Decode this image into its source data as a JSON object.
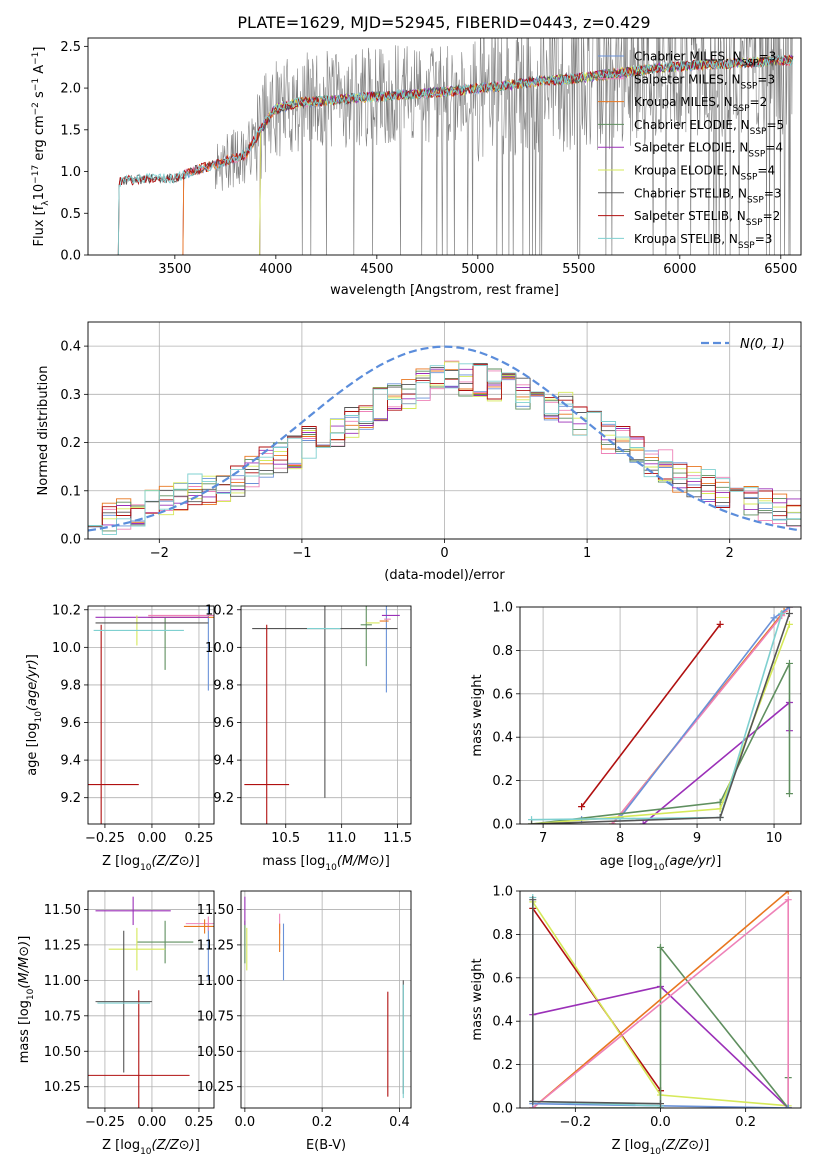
{
  "figure": {
    "title": "PLATE=1629, MJD=52945, FIBERID=0443, z=0.429"
  },
  "colors": {
    "chabrier_miles": "#6a92d8",
    "salpeter_miles": "#ee82b8",
    "kroupa_miles": "#e8761f",
    "chabrier_elodie": "#5f8f5f",
    "salpeter_elodie": "#9b30b8",
    "kroupa_elodie": "#d6e95a",
    "chabrier_stelib": "#555555",
    "salpeter_stelib": "#b01010",
    "kroupa_stelib": "#7fd0d0",
    "observed": "#808080",
    "gaussian": "#5b8ddb"
  },
  "chart_data": [
    {
      "type": "line",
      "id": "spectrum",
      "xlabel": "wavelength [Angstrom, rest frame]",
      "ylabel": "Flux [f_λ 10^-17 erg cm^-2 s^-1 A^-1]",
      "xlim": [
        3070,
        6600
      ],
      "ylim": [
        0,
        2.6
      ],
      "xticks": [
        3500,
        4000,
        4500,
        5000,
        5500,
        6000,
        6500
      ],
      "yticks": [
        0.0,
        0.5,
        1.0,
        1.5,
        2.0,
        2.5
      ],
      "continuum": {
        "wavelength": [
          3220,
          3240,
          3300,
          3400,
          3500,
          3600,
          3700,
          3780,
          3850,
          3950,
          4000,
          4100,
          4300,
          4500,
          4700,
          4900,
          5100,
          5300,
          5500,
          5700,
          5900,
          6100,
          6300,
          6500
        ],
        "flux": [
          0.85,
          0.9,
          0.9,
          0.92,
          0.92,
          1.02,
          1.08,
          1.15,
          1.2,
          1.6,
          1.75,
          1.82,
          1.86,
          1.9,
          1.93,
          1.97,
          2.02,
          2.08,
          2.12,
          2.18,
          2.24,
          2.28,
          2.3,
          2.33
        ]
      },
      "model_start_wavelength": {
        "miles": 3540,
        "elodie": 3920,
        "stelib": 3220
      },
      "legend": {
        "position": "upper right",
        "entries": [
          {
            "key": "chabrier_miles",
            "label": "Chabrier MILES, N",
            "sub": "SSP",
            "suffix": "=3"
          },
          {
            "key": "salpeter_miles",
            "label": "Salpeter MILES, N",
            "sub": "SSP",
            "suffix": "=3"
          },
          {
            "key": "kroupa_miles",
            "label": "Kroupa MILES, N",
            "sub": "SSP",
            "suffix": "=2"
          },
          {
            "key": "chabrier_elodie",
            "label": "Chabrier ELODIE, N",
            "sub": "SSP",
            "suffix": "=5"
          },
          {
            "key": "salpeter_elodie",
            "label": "Salpeter ELODIE, N",
            "sub": "SSP",
            "suffix": "=4"
          },
          {
            "key": "kroupa_elodie",
            "label": "Kroupa ELODIE, N",
            "sub": "SSP",
            "suffix": "=4"
          },
          {
            "key": "chabrier_stelib",
            "label": "Chabrier STELIB, N",
            "sub": "SSP",
            "suffix": "=3"
          },
          {
            "key": "salpeter_stelib",
            "label": "Salpeter STELIB, N",
            "sub": "SSP",
            "suffix": "=2"
          },
          {
            "key": "kroupa_stelib",
            "label": "Kroupa STELIB, N",
            "sub": "SSP",
            "suffix": "=3"
          }
        ]
      }
    },
    {
      "type": "histogram",
      "id": "residuals",
      "xlabel": "(data-model)/error",
      "ylabel": "Normed distribution",
      "xlim": [
        -2.5,
        2.5
      ],
      "ylim": [
        0,
        0.45
      ],
      "xticks": [
        -2,
        -1,
        0,
        1,
        2
      ],
      "yticks": [
        0.0,
        0.1,
        0.2,
        0.3,
        0.4
      ],
      "bins": 50,
      "reference_histogram": [
        0.03,
        0.04,
        0.05,
        0.06,
        0.07,
        0.08,
        0.09,
        0.1,
        0.1,
        0.11,
        0.12,
        0.14,
        0.16,
        0.17,
        0.18,
        0.2,
        0.21,
        0.22,
        0.24,
        0.26,
        0.28,
        0.29,
        0.3,
        0.32,
        0.33,
        0.34,
        0.33,
        0.33,
        0.32,
        0.31,
        0.3,
        0.29,
        0.28,
        0.27,
        0.25,
        0.23,
        0.21,
        0.2,
        0.18,
        0.16,
        0.15,
        0.13,
        0.12,
        0.11,
        0.1,
        0.09,
        0.08,
        0.07,
        0.06,
        0.05
      ],
      "gaussian": {
        "mean": 0,
        "sigma": 1,
        "label": "N(0, 1)"
      },
      "legend": {
        "position": "upper right"
      }
    },
    {
      "type": "errorbar",
      "id": "age_vs_metallicity",
      "xlabel": "Z [log10(Z/Z⊙)]",
      "ylabel": "age  [log10(age/yr)]",
      "xlim": [
        -0.34,
        0.33
      ],
      "ylim": [
        9.06,
        10.22
      ],
      "xticks": [
        -0.25,
        0.0,
        0.25
      ],
      "yticks": [
        9.2,
        9.4,
        9.6,
        9.8,
        10.0,
        10.2
      ],
      "points": [
        {
          "key": "chabrier_miles",
          "x": 0.3,
          "y": 10.1,
          "xerr": 0.0,
          "yerr": 0.33
        },
        {
          "key": "salpeter_miles",
          "x": 0.28,
          "y": 10.17,
          "xerr": 0.3,
          "yerr": 0.0
        },
        {
          "key": "kroupa_miles",
          "x": 0.28,
          "y": 10.16,
          "xerr": 0.3,
          "yerr": 0.0
        },
        {
          "key": "chabrier_elodie",
          "x": 0.07,
          "y": 10.02,
          "xerr": 0.0,
          "yerr": 0.14
        },
        {
          "key": "salpeter_elodie",
          "x": 0.0,
          "y": 10.16,
          "xerr": 0.3,
          "yerr": 0.0
        },
        {
          "key": "kroupa_elodie",
          "x": -0.08,
          "y": 10.09,
          "xerr": 0.0,
          "yerr": 0.08
        },
        {
          "key": "chabrier_stelib",
          "x": 0.0,
          "y": 10.13,
          "xerr": 0.3,
          "yerr": 0.0
        },
        {
          "key": "salpeter_stelib",
          "x": -0.27,
          "y": 9.27,
          "xerr": 0.2,
          "yerr": 0.85
        },
        {
          "key": "kroupa_stelib",
          "x": -0.07,
          "y": 10.09,
          "xerr": 0.24,
          "yerr": 0.0
        }
      ]
    },
    {
      "type": "errorbar",
      "id": "age_vs_mass",
      "xlabel": "mass [log10(M/M⊙)]",
      "ylabel": "",
      "xlim": [
        10.1,
        11.62
      ],
      "ylim": [
        9.06,
        10.22
      ],
      "xticks": [
        10.5,
        11.0,
        11.5
      ],
      "yticks": [
        9.2,
        9.4,
        9.6,
        9.8,
        10.0,
        10.2
      ],
      "points": [
        {
          "key": "chabrier_miles",
          "x": 11.4,
          "y": 10.1,
          "xerr": 0.03,
          "yerr": 0.34
        },
        {
          "key": "salpeter_miles",
          "x": 11.41,
          "y": 10.15,
          "xerr": 0.03,
          "yerr": 0.0
        },
        {
          "key": "kroupa_miles",
          "x": 11.38,
          "y": 10.14,
          "xerr": 0.04,
          "yerr": 0.0
        },
        {
          "key": "chabrier_elodie",
          "x": 11.22,
          "y": 10.12,
          "xerr": 0.05,
          "yerr": 0.22
        },
        {
          "key": "salpeter_elodie",
          "x": 11.44,
          "y": 10.17,
          "xerr": 0.08,
          "yerr": 0.0
        },
        {
          "key": "kroupa_elodie",
          "x": 11.28,
          "y": 10.13,
          "xerr": 0.06,
          "yerr": 0.0
        },
        {
          "key": "chabrier_stelib",
          "x": 10.85,
          "y": 10.1,
          "xerr": 0.65,
          "yerr": 0.9
        },
        {
          "key": "salpeter_stelib",
          "x": 10.33,
          "y": 9.27,
          "xerr": 0.2,
          "yerr": 0.85
        },
        {
          "key": "kroupa_stelib",
          "x": 10.84,
          "y": 10.1,
          "xerr": 0.15,
          "yerr": 0.0
        }
      ]
    },
    {
      "type": "line",
      "id": "cumulative_mass_weight_age",
      "xlabel": "age  [log10(age/yr)]",
      "ylabel": "mass weight",
      "xlim": [
        6.7,
        10.35
      ],
      "ylim": [
        0,
        1
      ],
      "xticks": [
        7,
        8,
        9,
        10
      ],
      "yticks": [
        0.0,
        0.2,
        0.4,
        0.6,
        0.8,
        1.0
      ],
      "series": [
        {
          "key": "salpeter_stelib",
          "x": [
            7.5,
            9.3
          ],
          "y": [
            0.08,
            0.92
          ]
        },
        {
          "key": "kroupa_miles",
          "x": [
            7.9,
            10.13,
            10.2
          ],
          "y": [
            0.0,
            0.98,
            1.0
          ]
        },
        {
          "key": "salpeter_miles",
          "x": [
            7.9,
            10.1,
            10.2
          ],
          "y": [
            0.0,
            0.96,
            1.0
          ]
        },
        {
          "key": "chabrier_miles",
          "x": [
            7.5,
            8.0,
            10.0,
            10.2
          ],
          "y": [
            0.02,
            0.03,
            0.95,
            1.0
          ]
        },
        {
          "key": "salpeter_elodie",
          "x": [
            8.3,
            10.2,
            10.2
          ],
          "y": [
            0.0,
            0.56,
            0.43
          ]
        },
        {
          "key": "chabrier_elodie",
          "x": [
            6.85,
            9.3,
            10.2,
            10.2
          ],
          "y": [
            0.0,
            0.1,
            0.74,
            0.14
          ]
        },
        {
          "key": "kroupa_elodie",
          "x": [
            6.85,
            9.3,
            10.2
          ],
          "y": [
            0.0,
            0.07,
            0.92
          ]
        },
        {
          "key": "kroupa_stelib",
          "x": [
            6.85,
            9.3,
            10.1
          ],
          "y": [
            0.02,
            0.03,
            0.97
          ]
        },
        {
          "key": "chabrier_stelib",
          "x": [
            6.85,
            9.3,
            10.2
          ],
          "y": [
            0.0,
            0.03,
            0.97
          ]
        }
      ]
    },
    {
      "type": "errorbar",
      "id": "mass_vs_metallicity",
      "xlabel": "Z [log10(Z/Z⊙)]",
      "ylabel": "mass [log10(M/M⊙)]",
      "xlim": [
        -0.34,
        0.33
      ],
      "ylim": [
        10.1,
        11.63
      ],
      "xticks": [
        -0.25,
        0.0,
        0.25
      ],
      "yticks": [
        10.25,
        10.5,
        10.75,
        11.0,
        11.25,
        11.5
      ],
      "points": [
        {
          "key": "chabrier_miles",
          "x": 0.3,
          "y": 11.2,
          "xerr": 0.0,
          "yerr": 0.2
        },
        {
          "key": "salpeter_miles",
          "x": 0.3,
          "y": 11.4,
          "xerr": 0.12,
          "yerr": 0.05
        },
        {
          "key": "kroupa_miles",
          "x": 0.28,
          "y": 11.38,
          "xerr": 0.11,
          "yerr": 0.05
        },
        {
          "key": "chabrier_elodie",
          "x": 0.07,
          "y": 11.27,
          "xerr": 0.15,
          "yerr": 0.15
        },
        {
          "key": "salpeter_elodie",
          "x": -0.1,
          "y": 11.49,
          "xerr": 0.2,
          "yerr": 0.1
        },
        {
          "key": "kroupa_elodie",
          "x": -0.08,
          "y": 11.22,
          "xerr": 0.15,
          "yerr": 0.15
        },
        {
          "key": "chabrier_stelib",
          "x": -0.15,
          "y": 10.85,
          "xerr": 0.15,
          "yerr": 0.5
        },
        {
          "key": "salpeter_stelib",
          "x": -0.07,
          "y": 10.33,
          "xerr": 0.27,
          "yerr": 0.6
        },
        {
          "key": "kroupa_stelib",
          "x": -0.15,
          "y": 10.84,
          "xerr": 0.14,
          "yerr": 0.0
        }
      ]
    },
    {
      "type": "errorbar",
      "id": "mass_vs_ebv",
      "xlabel": "E(B-V)",
      "ylabel": "",
      "xlim": [
        -0.01,
        0.43
      ],
      "ylim": [
        10.1,
        11.63
      ],
      "xticks": [
        0.0,
        0.2,
        0.4
      ],
      "yticks": [
        10.25,
        10.5,
        10.75,
        11.0,
        11.25,
        11.5
      ],
      "points": [
        {
          "key": "chabrier_miles",
          "x": 0.1,
          "y": 11.2,
          "xerr": 0.0,
          "yerr": 0.2
        },
        {
          "key": "salpeter_miles",
          "x": 0.09,
          "y": 11.4,
          "xerr": 0.0,
          "yerr": 0.07
        },
        {
          "key": "kroupa_miles",
          "x": 0.09,
          "y": 11.3,
          "xerr": 0.0,
          "yerr": 0.1
        },
        {
          "key": "chabrier_elodie",
          "x": 0.0,
          "y": 11.27,
          "xerr": 0.0,
          "yerr": 0.15
        },
        {
          "key": "salpeter_elodie",
          "x": 0.0,
          "y": 11.49,
          "xerr": 0.0,
          "yerr": 0.1
        },
        {
          "key": "kroupa_elodie",
          "x": 0.005,
          "y": 11.22,
          "xerr": 0.0,
          "yerr": 0.15
        },
        {
          "key": "chabrier_stelib",
          "x": 0.41,
          "y": 10.6,
          "xerr": 0.0,
          "yerr": 0.4
        },
        {
          "key": "salpeter_stelib",
          "x": 0.37,
          "y": 10.55,
          "xerr": 0.0,
          "yerr": 0.37
        },
        {
          "key": "kroupa_stelib",
          "x": 0.41,
          "y": 10.57,
          "xerr": 0.0,
          "yerr": 0.4
        }
      ]
    },
    {
      "type": "line",
      "id": "cumulative_mass_weight_z",
      "xlabel": "Z [log10(Z/Z⊙)]",
      "ylabel": "mass weight",
      "xlim": [
        -0.33,
        0.33
      ],
      "ylim": [
        0,
        1
      ],
      "xticks": [
        -0.2,
        0.0,
        0.2
      ],
      "yticks": [
        0.0,
        0.2,
        0.4,
        0.6,
        0.8,
        1.0
      ],
      "series": [
        {
          "key": "salpeter_stelib",
          "x": [
            -0.3,
            0.0,
            0.0
          ],
          "y": [
            0.92,
            0.08,
            0.08
          ]
        },
        {
          "key": "kroupa_elodie",
          "x": [
            -0.3,
            0.0,
            0.3
          ],
          "y": [
            0.95,
            0.06,
            0.01
          ]
        },
        {
          "key": "salpeter_elodie",
          "x": [
            -0.3,
            0.0,
            0.3,
            0.3
          ],
          "y": [
            0.43,
            0.56,
            0.0,
            0.0
          ]
        },
        {
          "key": "chabrier_elodie",
          "x": [
            -0.3,
            0.0,
            0.0,
            0.3,
            0.3
          ],
          "y": [
            0.0,
            0.0,
            0.74,
            0.0,
            0.14
          ]
        },
        {
          "key": "kroupa_miles",
          "x": [
            -0.3,
            0.3
          ],
          "y": [
            0.0,
            1.0
          ]
        },
        {
          "key": "salpeter_miles",
          "x": [
            -0.3,
            0.3,
            0.3
          ],
          "y": [
            0.0,
            0.96,
            0.0
          ]
        },
        {
          "key": "chabrier_miles",
          "x": [
            -0.3,
            0.0,
            0.3,
            0.3
          ],
          "y": [
            0.02,
            0.01,
            0.0,
            0.0
          ]
        },
        {
          "key": "kroupa_stelib",
          "x": [
            -0.3,
            -0.3,
            0.0
          ],
          "y": [
            0.97,
            0.03,
            0.01
          ]
        },
        {
          "key": "chabrier_stelib",
          "x": [
            -0.3,
            -0.3,
            0.0
          ],
          "y": [
            0.96,
            0.03,
            0.02
          ]
        }
      ]
    }
  ]
}
